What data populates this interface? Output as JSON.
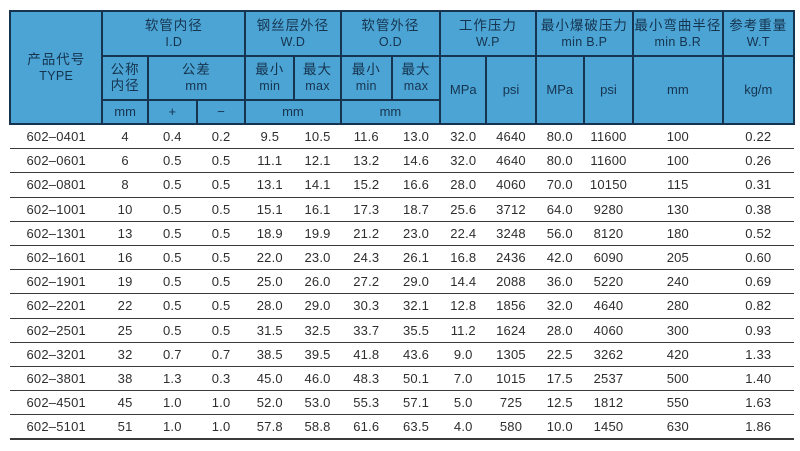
{
  "colors": {
    "header_bg": "#4BA4D3",
    "border": "#16334F",
    "header_text": "#16334F",
    "body_text": "#2E2E2E",
    "row_line": "#3A3A3A"
  },
  "table": {
    "type_header": {
      "cn": "产品代号",
      "en": "TYPE"
    },
    "groups": {
      "id": {
        "cn": "软管内径",
        "en": "I.D"
      },
      "wd": {
        "cn": "钢丝层外径",
        "en": "W.D"
      },
      "od": {
        "cn": "软管外径",
        "en": "O.D"
      },
      "wp": {
        "cn": "工作压力",
        "en": "W.P"
      },
      "bp": {
        "cn": "最小爆破压力",
        "en": "min B.P"
      },
      "br": {
        "cn": "最小弯曲半径",
        "en": "min B.R"
      },
      "wt": {
        "cn": "参考重量",
        "en": "W.T"
      }
    },
    "subheaders": {
      "nominal": {
        "line1": "公称",
        "line2": "内径"
      },
      "tolerance": {
        "cn": "公差",
        "unit": "mm"
      },
      "min": {
        "cn": "最小",
        "en": "min"
      },
      "max": {
        "cn": "最大",
        "en": "max"
      },
      "plus": "+",
      "minus": "−",
      "mm": "mm",
      "mpa": "MPa",
      "psi": "psi",
      "kgm": "kg/m"
    },
    "rows": [
      [
        "602–0401",
        "4",
        "0.4",
        "0.2",
        "9.5",
        "10.5",
        "11.6",
        "13.0",
        "32.0",
        "4640",
        "80.0",
        "11600",
        "100",
        "0.22"
      ],
      [
        "602–0601",
        "6",
        "0.5",
        "0.5",
        "11.1",
        "12.1",
        "13.2",
        "14.6",
        "32.0",
        "4640",
        "80.0",
        "11600",
        "100",
        "0.26"
      ],
      [
        "602–0801",
        "8",
        "0.5",
        "0.5",
        "13.1",
        "14.1",
        "15.2",
        "16.6",
        "28.0",
        "4060",
        "70.0",
        "10150",
        "115",
        "0.31"
      ],
      [
        "602–1001",
        "10",
        "0.5",
        "0.5",
        "15.1",
        "16.1",
        "17.3",
        "18.7",
        "25.6",
        "3712",
        "64.0",
        "9280",
        "130",
        "0.38"
      ],
      [
        "602–1301",
        "13",
        "0.5",
        "0.5",
        "18.9",
        "19.9",
        "21.2",
        "23.0",
        "22.4",
        "3248",
        "56.0",
        "8120",
        "180",
        "0.52"
      ],
      [
        "602–1601",
        "16",
        "0.5",
        "0.5",
        "22.0",
        "23.0",
        "24.3",
        "26.1",
        "16.8",
        "2436",
        "42.0",
        "6090",
        "205",
        "0.60"
      ],
      [
        "602–1901",
        "19",
        "0.5",
        "0.5",
        "25.0",
        "26.0",
        "27.2",
        "29.0",
        "14.4",
        "2088",
        "36.0",
        "5220",
        "240",
        "0.69"
      ],
      [
        "602–2201",
        "22",
        "0.5",
        "0.5",
        "28.0",
        "29.0",
        "30.3",
        "32.1",
        "12.8",
        "1856",
        "32.0",
        "4640",
        "280",
        "0.82"
      ],
      [
        "602–2501",
        "25",
        "0.5",
        "0.5",
        "31.5",
        "32.5",
        "33.7",
        "35.5",
        "11.2",
        "1624",
        "28.0",
        "4060",
        "300",
        "0.93"
      ],
      [
        "602–3201",
        "32",
        "0.7",
        "0.7",
        "38.5",
        "39.5",
        "41.8",
        "43.6",
        "9.0",
        "1305",
        "22.5",
        "3262",
        "420",
        "1.33"
      ],
      [
        "602–3801",
        "38",
        "1.3",
        "0.3",
        "45.0",
        "46.0",
        "48.3",
        "50.1",
        "7.0",
        "1015",
        "17.5",
        "2537",
        "500",
        "1.40"
      ],
      [
        "602–4501",
        "45",
        "1.0",
        "1.0",
        "52.0",
        "53.0",
        "55.3",
        "57.1",
        "5.0",
        "725",
        "12.5",
        "1812",
        "550",
        "1.63"
      ],
      [
        "602–5101",
        "51",
        "1.0",
        "1.0",
        "57.8",
        "58.8",
        "61.6",
        "63.5",
        "4.0",
        "580",
        "10.0",
        "1450",
        "630",
        "1.86"
      ]
    ]
  }
}
